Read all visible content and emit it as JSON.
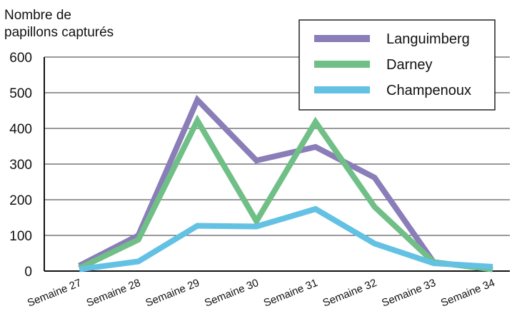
{
  "chart_data": {
    "type": "line",
    "ylabel_lines": [
      "Nombre de",
      "papillons capturés"
    ],
    "categories": [
      "Semaine 27",
      "Semaine 28",
      "Semaine 29",
      "Semaine 30",
      "Semaine 31",
      "Semaine 32",
      "Semaine 33",
      "Semaine 34"
    ],
    "ylim": [
      0,
      600
    ],
    "yticks": [
      0,
      100,
      200,
      300,
      400,
      500,
      600
    ],
    "grid": true,
    "legend_position": "top-right",
    "series": [
      {
        "name": "Languimberg",
        "color": "#8a7db8",
        "values": [
          15,
          100,
          480,
          310,
          348,
          262,
          25,
          5
        ]
      },
      {
        "name": "Darney",
        "color": "#6fbf86",
        "values": [
          8,
          88,
          422,
          140,
          418,
          180,
          25,
          5
        ]
      },
      {
        "name": "Champenoux",
        "color": "#63c1e3",
        "values": [
          5,
          27,
          127,
          125,
          174,
          77,
          22,
          12
        ]
      }
    ]
  }
}
